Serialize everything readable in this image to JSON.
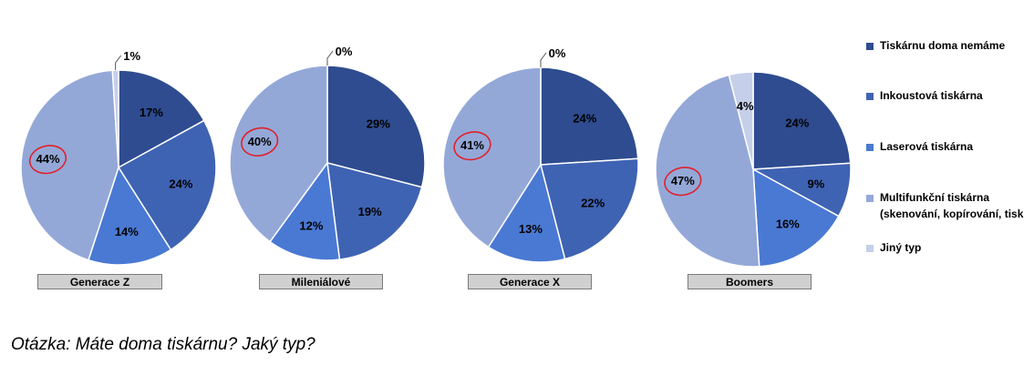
{
  "chart_data": {
    "type": "pie",
    "legend": [
      {
        "name": "Tiskárnu doma nemáme",
        "color": "#2e4c8f"
      },
      {
        "name": "Inkoustová tiskárna",
        "color": "#3f63b3"
      },
      {
        "name": "Laserová tiskárna",
        "color": "#4a79d3"
      },
      {
        "name_lines": [
          "Multifunkční tiskárna",
          "(skenování, kopírování, tisk"
        ],
        "color": "#94a8d8"
      },
      {
        "name": "Jiný typ",
        "color": "#c5cfea"
      }
    ],
    "charts": [
      {
        "label": "Generace Z",
        "values": [
          17,
          24,
          14,
          44,
          1
        ],
        "labels": [
          "17%",
          "24%",
          "14%",
          "44%",
          "1%"
        ],
        "circled": "44%"
      },
      {
        "label": "Mileniálové",
        "values": [
          29,
          19,
          12,
          40,
          0
        ],
        "labels": [
          "29%",
          "19%",
          "12%",
          "40%",
          "0%"
        ],
        "circled": "40%"
      },
      {
        "label": "Generace X",
        "values": [
          24,
          22,
          13,
          41,
          0
        ],
        "labels": [
          "24%",
          "22%",
          "13%",
          "41%",
          "0%"
        ],
        "circled": "41%"
      },
      {
        "label": "Boomers",
        "values": [
          24,
          9,
          16,
          47,
          4
        ],
        "labels": [
          "24%",
          "9%",
          "16%",
          "47%",
          "4%"
        ],
        "circled": "47%"
      }
    ]
  },
  "question": "Otázka: Máte doma tiskárnu? Jaký typ?"
}
